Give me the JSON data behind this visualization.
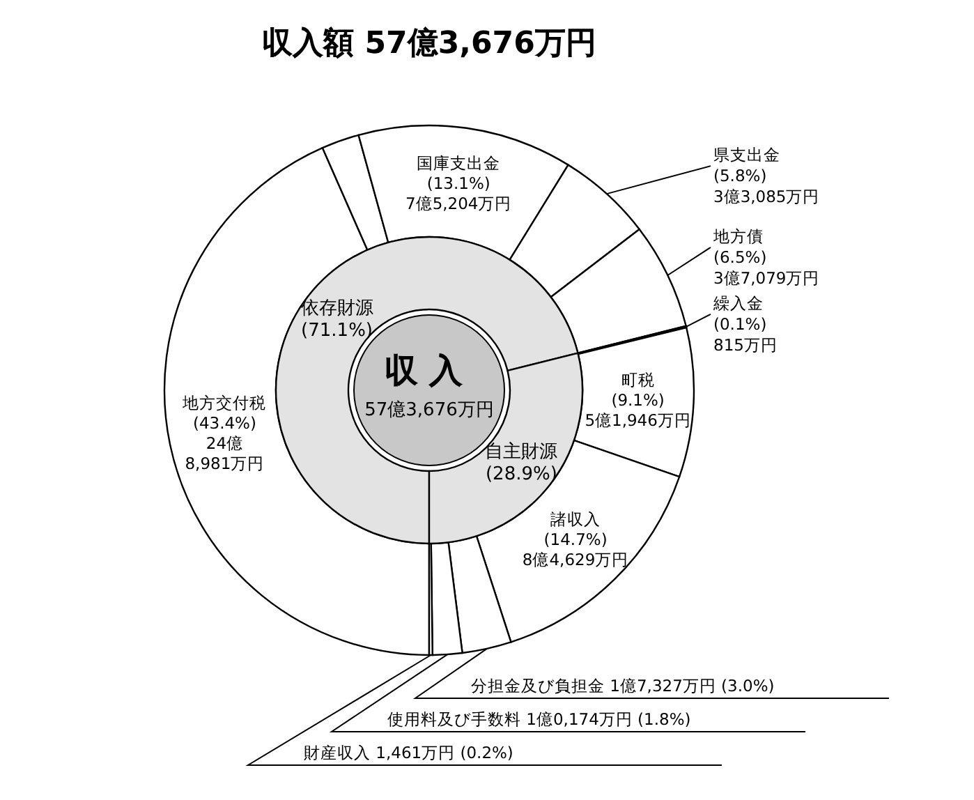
{
  "chart_data": [
    {
      "type": "donut",
      "title": "収入額 57億3,676万円",
      "categories": [
        "地方交付税",
        null,
        "国庫支出金",
        "県支出金",
        "地方債",
        "繰入金",
        "町税",
        "諸収入",
        "分担金及び負担金",
        "使用料及び手数料",
        "財産収入"
      ],
      "values": [
        43.4,
        2.3,
        13.1,
        5.8,
        6.5,
        0.1,
        9.1,
        14.7,
        3.0,
        1.8,
        0.2
      ],
      "value_labels": [
        "(43.4%) 24億 8,981万円",
        null,
        "(13.1%) 7億5,204万円",
        "(5.8%) 3億3,085万円",
        "(6.5%) 3億7,079万円",
        "(0.1%) 815万円",
        "(9.1%) 5億1,946万円",
        "(14.7%) 8億4,629万円",
        "1億7,327万円 (3.0%)",
        "1億0,174万円 (1.8%)",
        "1,461万円 (0.2%)"
      ],
      "colors": [
        "#ffffff",
        "#ffffff",
        "#ffffff",
        "#ffffff",
        "#ffffff",
        "#ffffff",
        "#ffffff",
        "#ffffff",
        "#ffffff",
        "#ffffff",
        "#ffffff"
      ]
    },
    {
      "type": "donut",
      "categories": [
        "依存財源",
        "自主財源"
      ],
      "values": [
        71.1,
        28.9
      ],
      "value_labels": [
        "(71.1%)",
        "(28.9%)"
      ],
      "colors": [
        "#e3e3e3",
        "#e3e3e3"
      ],
      "annotations": [
        "収入",
        "57億3,676万円"
      ]
    }
  ]
}
